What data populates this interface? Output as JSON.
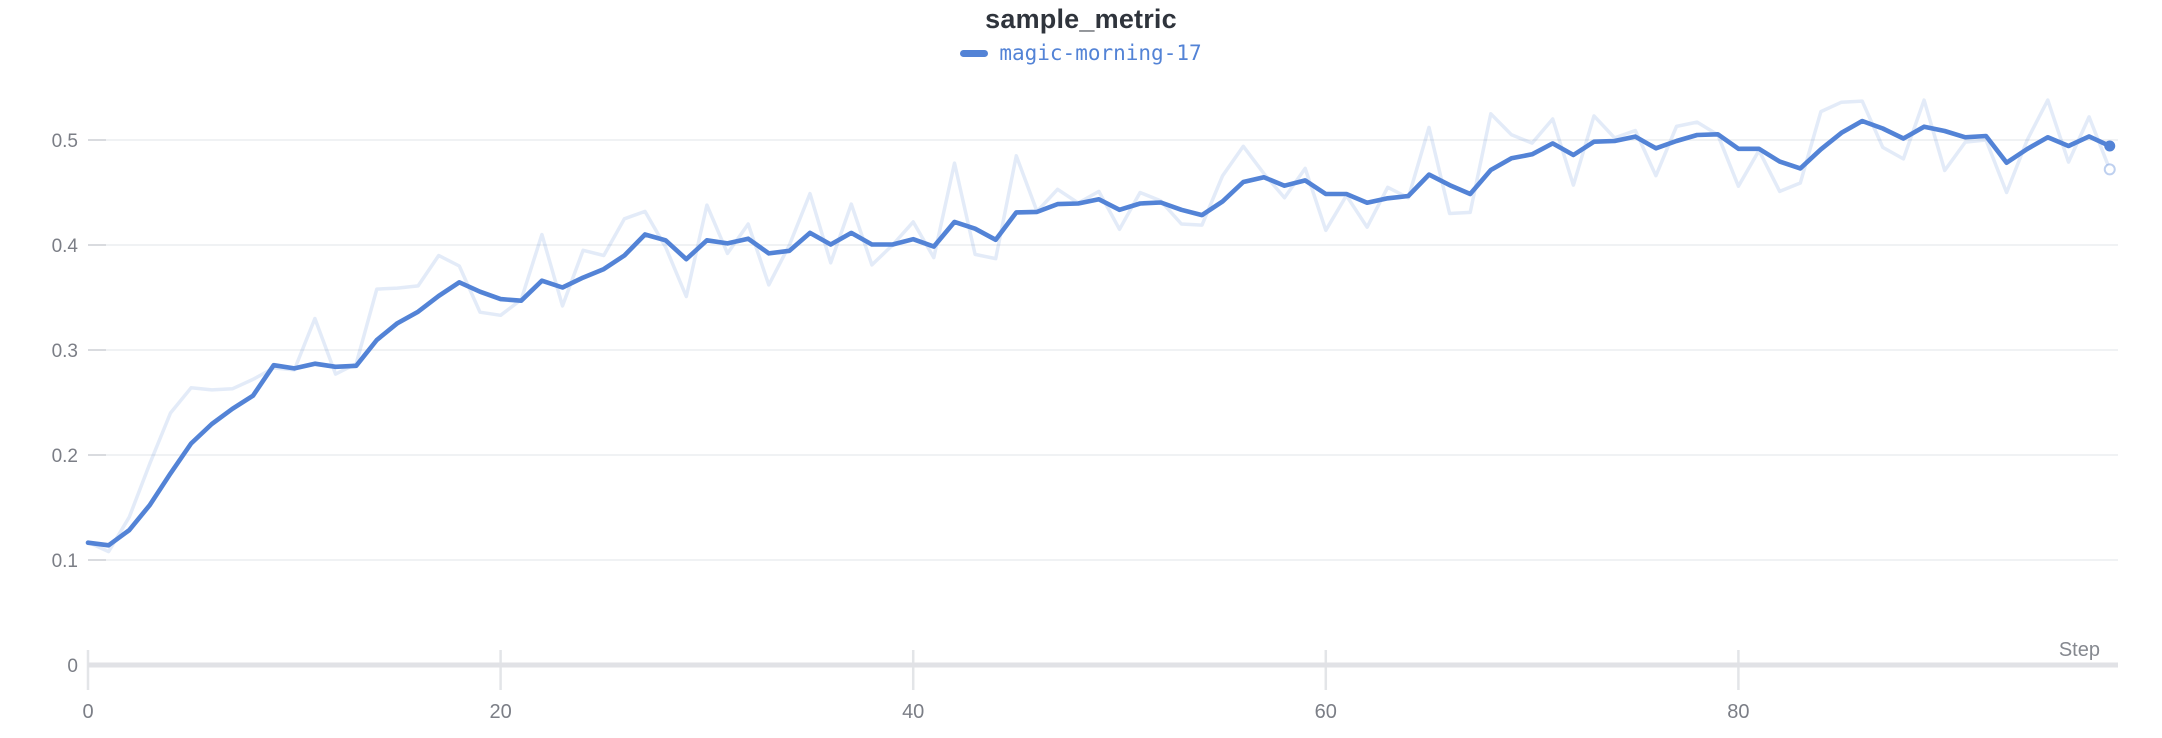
{
  "header": {
    "title": "sample_metric"
  },
  "legend": {
    "run_name": "magic-morning-17",
    "swatch_color": "#5383d6"
  },
  "axis": {
    "x_label": "Step",
    "x_tick_labels": [
      "0",
      "20",
      "40",
      "60",
      "80"
    ],
    "y_tick_labels": [
      "0",
      "0.1",
      "0.2",
      "0.3",
      "0.4",
      "0.5"
    ]
  },
  "colors": {
    "accent": "#5383d6",
    "raw_line": "rgba(83,131,214,0.16)",
    "raw_ring_stroke": "rgba(83,131,214,0.38)",
    "gridline": "#ebedf0",
    "grid_stub": "#d9dbdf",
    "axis_bar": "#e1e2e6",
    "x_tick_mark": "#e3e5e8",
    "tick_text": "#7b7e86",
    "axis_label_text": "#85888f",
    "title_text": "#2f343c",
    "background": "#ffffff"
  },
  "chart_data": {
    "type": "line",
    "title": "sample_metric",
    "xlabel": "Step",
    "ylabel": "",
    "x_start": 0,
    "x_step": 1,
    "xlim": [
      0,
      98.6
    ],
    "ylim": [
      0,
      0.545
    ],
    "x_ticks": [
      0,
      20,
      40,
      60,
      80
    ],
    "y_ticks": [
      0,
      0.1,
      0.2,
      0.3,
      0.4,
      0.5
    ],
    "grid": "horizontal",
    "legend_position": "top-center",
    "series": [
      {
        "name": "magic-morning-17 (smoothed)",
        "color": "#5383d6",
        "endpoint_marker": "filled-dot",
        "values": [
          0.1165,
          0.114,
          0.1285,
          0.1525,
          0.1825,
          0.211,
          0.2295,
          0.244,
          0.2565,
          0.2855,
          0.2825,
          0.287,
          0.284,
          0.285,
          0.3095,
          0.3255,
          0.3365,
          0.3515,
          0.3645,
          0.3555,
          0.3485,
          0.347,
          0.366,
          0.3595,
          0.369,
          0.377,
          0.39,
          0.41,
          0.4045,
          0.3865,
          0.4045,
          0.4015,
          0.406,
          0.392,
          0.3945,
          0.4115,
          0.4005,
          0.4115,
          0.4005,
          0.4005,
          0.4055,
          0.3985,
          0.422,
          0.4155,
          0.405,
          0.431,
          0.4315,
          0.439,
          0.4395,
          0.4435,
          0.4335,
          0.4395,
          0.4405,
          0.4335,
          0.4285,
          0.4415,
          0.46,
          0.4645,
          0.4565,
          0.4615,
          0.4486,
          0.4486,
          0.4403,
          0.4445,
          0.4467,
          0.467,
          0.457,
          0.4486,
          0.4714,
          0.4826,
          0.4864,
          0.4968,
          0.4857,
          0.4984,
          0.499,
          0.5032,
          0.4921,
          0.499,
          0.5048,
          0.5054,
          0.4916,
          0.4916,
          0.4794,
          0.473,
          0.4911,
          0.5069,
          0.5181,
          0.511,
          0.5014,
          0.5127,
          0.5086,
          0.5026,
          0.5038,
          0.4784,
          0.4914,
          0.5026,
          0.4943,
          0.5034,
          0.4943
        ]
      },
      {
        "name": "magic-morning-17 (original)",
        "color": "rgba(83,131,214,0.16)",
        "endpoint_marker": "open-ring",
        "values": [
          0.117,
          0.108,
          0.141,
          0.192,
          0.24,
          0.264,
          0.262,
          0.263,
          0.272,
          0.283,
          0.281,
          0.33,
          0.277,
          0.287,
          0.358,
          0.359,
          0.361,
          0.39,
          0.38,
          0.336,
          0.333,
          0.348,
          0.41,
          0.342,
          0.395,
          0.39,
          0.425,
          0.432,
          0.398,
          0.351,
          0.438,
          0.392,
          0.42,
          0.362,
          0.4,
          0.449,
          0.383,
          0.439,
          0.381,
          0.4,
          0.422,
          0.388,
          0.478,
          0.391,
          0.387,
          0.485,
          0.432,
          0.453,
          0.44,
          0.451,
          0.415,
          0.45,
          0.442,
          0.42,
          0.419,
          0.466,
          0.494,
          0.468,
          0.445,
          0.473,
          0.414,
          0.447,
          0.417,
          0.455,
          0.445,
          0.512,
          0.43,
          0.431,
          0.525,
          0.505,
          0.497,
          0.52,
          0.457,
          0.523,
          0.502,
          0.509,
          0.466,
          0.513,
          0.517,
          0.505,
          0.456,
          0.49,
          0.451,
          0.459,
          0.527,
          0.536,
          0.537,
          0.493,
          0.482,
          0.538,
          0.471,
          0.498,
          0.5,
          0.45,
          0.5,
          0.538,
          0.479,
          0.522,
          0.472
        ]
      }
    ]
  }
}
